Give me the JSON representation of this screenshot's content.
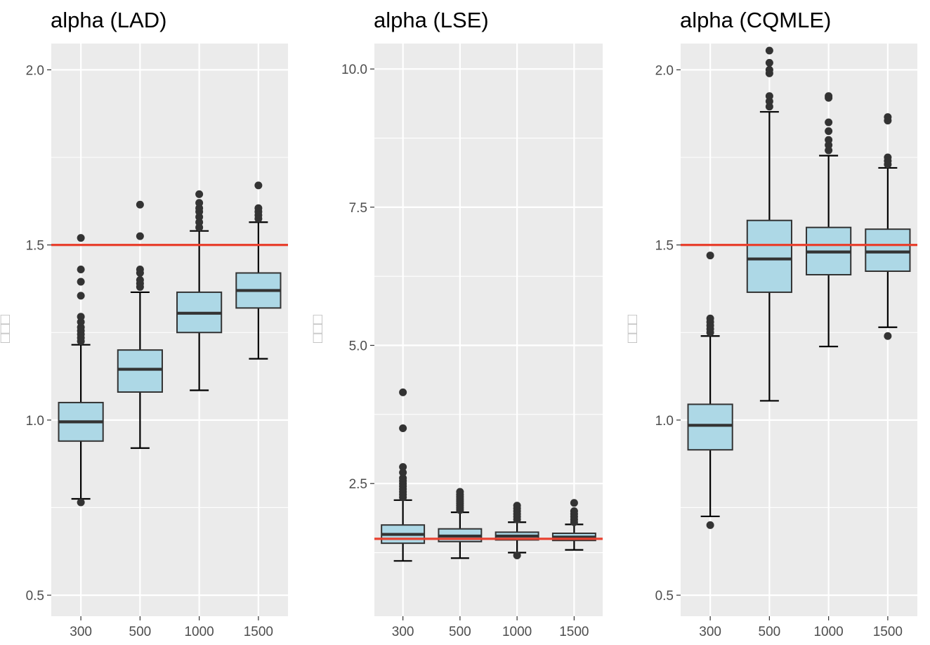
{
  "chart_data": [
    {
      "type": "box",
      "title": "alpha (LAD)",
      "ylabel": "□□□",
      "ylim": [
        0.44,
        2.075
      ],
      "yticks": [
        0.5,
        1.0,
        1.5,
        2.0
      ],
      "ytick_labels": [
        "0.5",
        "1.0",
        "1.5",
        "2.0"
      ],
      "categories": [
        "300",
        "500",
        "1000",
        "1500"
      ],
      "reference_line": 1.5,
      "reference_color": "#e8412f",
      "box_fill": "#add8e6",
      "boxes": [
        {
          "q1": 0.94,
          "median": 0.995,
          "q3": 1.05,
          "whisker_low": 0.775,
          "whisker_high": 1.215,
          "outliers": [
            0.765,
            1.225,
            1.235,
            1.245,
            1.255,
            1.265,
            1.28,
            1.295,
            1.355,
            1.395,
            1.43,
            1.52
          ]
        },
        {
          "q1": 1.08,
          "median": 1.145,
          "q3": 1.2,
          "whisker_low": 0.92,
          "whisker_high": 1.365,
          "outliers": [
            1.38,
            1.39,
            1.4,
            1.42,
            1.43,
            1.525,
            1.615
          ]
        },
        {
          "q1": 1.25,
          "median": 1.305,
          "q3": 1.365,
          "whisker_low": 1.085,
          "whisker_high": 1.54,
          "outliers": [
            1.55,
            1.565,
            1.58,
            1.595,
            1.605,
            1.62,
            1.645
          ]
        },
        {
          "q1": 1.32,
          "median": 1.37,
          "q3": 1.42,
          "whisker_low": 1.175,
          "whisker_high": 1.565,
          "outliers": [
            1.575,
            1.585,
            1.595,
            1.605,
            1.67
          ]
        }
      ]
    },
    {
      "type": "box",
      "title": "alpha (LSE)",
      "ylabel": "□□□",
      "ylim": [
        0.1,
        10.46
      ],
      "yticks": [
        2.5,
        5.0,
        7.5,
        10.0
      ],
      "ytick_labels": [
        "2.5",
        "5.0",
        "7.5",
        "10.0"
      ],
      "categories": [
        "300",
        "500",
        "1000",
        "1500"
      ],
      "reference_line": 1.5,
      "reference_color": "#e8412f",
      "box_fill": "#add8e6",
      "boxes": [
        {
          "q1": 1.42,
          "median": 1.58,
          "q3": 1.75,
          "whisker_low": 1.1,
          "whisker_high": 2.2,
          "outliers": [
            2.25,
            2.3,
            2.35,
            2.4,
            2.45,
            2.5,
            2.55,
            2.6,
            2.7,
            2.8,
            3.5,
            4.15
          ]
        },
        {
          "q1": 1.45,
          "median": 1.55,
          "q3": 1.68,
          "whisker_low": 1.15,
          "whisker_high": 1.98,
          "outliers": [
            2.02,
            2.06,
            2.1,
            2.14,
            2.18,
            2.22,
            2.26,
            2.3,
            2.35
          ]
        },
        {
          "q1": 1.48,
          "median": 1.55,
          "q3": 1.62,
          "whisker_low": 1.25,
          "whisker_high": 1.8,
          "outliers": [
            1.85,
            1.9,
            1.95,
            2.0,
            2.05,
            2.1,
            1.2
          ]
        },
        {
          "q1": 1.47,
          "median": 1.53,
          "q3": 1.6,
          "whisker_low": 1.3,
          "whisker_high": 1.76,
          "outliers": [
            1.8,
            1.85,
            1.9,
            1.95,
            2.0,
            2.15
          ]
        }
      ]
    },
    {
      "type": "box",
      "title": "alpha (CQMLE)",
      "ylabel": "□□□",
      "ylim": [
        0.44,
        2.075
      ],
      "yticks": [
        0.5,
        1.0,
        1.5,
        2.0
      ],
      "ytick_labels": [
        "0.5",
        "1.0",
        "1.5",
        "2.0"
      ],
      "categories": [
        "300",
        "500",
        "1000",
        "1500"
      ],
      "reference_line": 1.5,
      "reference_color": "#e8412f",
      "box_fill": "#add8e6",
      "boxes": [
        {
          "q1": 0.915,
          "median": 0.985,
          "q3": 1.045,
          "whisker_low": 0.725,
          "whisker_high": 1.24,
          "outliers": [
            0.7,
            1.25,
            1.26,
            1.27,
            1.28,
            1.29,
            1.47
          ]
        },
        {
          "q1": 1.365,
          "median": 1.46,
          "q3": 1.57,
          "whisker_low": 1.055,
          "whisker_high": 1.88,
          "outliers": [
            1.895,
            1.91,
            1.925,
            1.99,
            2.0,
            2.02,
            2.055
          ]
        },
        {
          "q1": 1.415,
          "median": 1.48,
          "q3": 1.55,
          "whisker_low": 1.21,
          "whisker_high": 1.755,
          "outliers": [
            1.77,
            1.785,
            1.8,
            1.825,
            1.85,
            1.92,
            1.925
          ]
        },
        {
          "q1": 1.425,
          "median": 1.48,
          "q3": 1.545,
          "whisker_low": 1.265,
          "whisker_high": 1.72,
          "outliers": [
            1.24,
            1.73,
            1.74,
            1.75,
            1.855,
            1.865
          ]
        }
      ]
    }
  ]
}
